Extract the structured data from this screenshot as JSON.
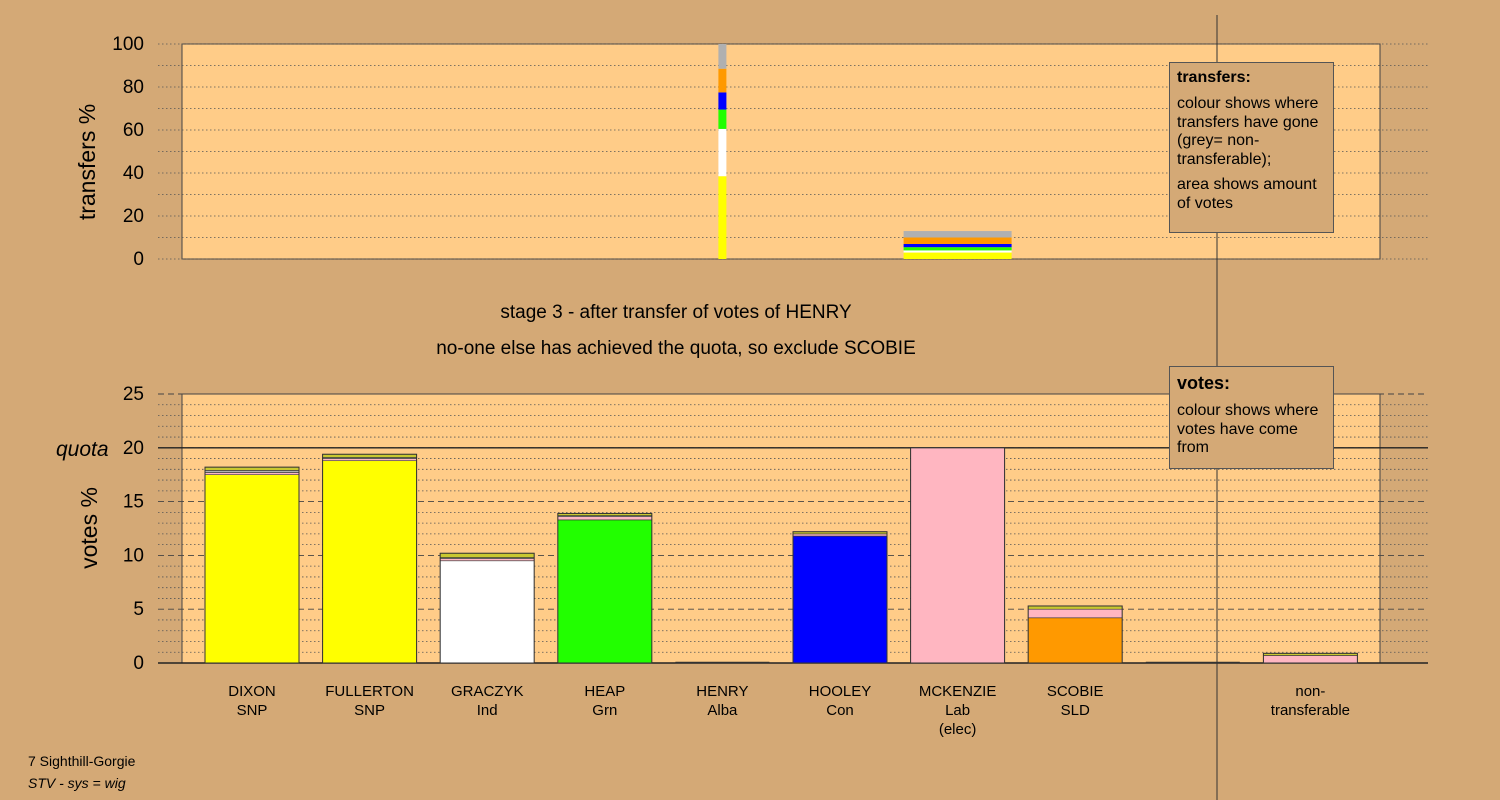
{
  "chart_data": [
    {
      "type": "bar",
      "id": "transfers",
      "ylabel": "transfers %",
      "ylim": [
        0,
        100
      ],
      "yticks": [
        0,
        20,
        40,
        60,
        80,
        100
      ],
      "grid": "dotted horizontal",
      "stacks": [
        {
          "column": "HENRY",
          "segments": [
            {
              "color": "#ffff00",
              "value": 38.5
            },
            {
              "color": "#ffffff",
              "value": 22
            },
            {
              "color": "#22ff00",
              "value": 9
            },
            {
              "color": "#0000ff",
              "value": 8
            },
            {
              "color": "#ff9900",
              "value": 11
            },
            {
              "color": "#b0b0b0",
              "value": 11.5
            }
          ]
        },
        {
          "column": "MCKENZIE",
          "segments": [
            {
              "color": "#ffff00",
              "value": 3
            },
            {
              "color": "#ffffff",
              "value": 1
            },
            {
              "color": "#22ff00",
              "value": 1.5
            },
            {
              "color": "#0000ff",
              "value": 1.5
            },
            {
              "color": "#ff9900",
              "value": 3
            },
            {
              "color": "#b0b0b0",
              "value": 3
            }
          ]
        }
      ]
    },
    {
      "type": "bar",
      "id": "votes",
      "ylabel": "votes %",
      "ylim": [
        0,
        25
      ],
      "yticks": [
        0,
        5,
        10,
        15,
        20,
        25
      ],
      "quota": 20,
      "quota_label": "quota",
      "grid": "dashed every 5, dotted every 1",
      "categories": [
        {
          "name": "DIXON",
          "party": "SNP",
          "note": ""
        },
        {
          "name": "FULLERTON",
          "party": "SNP",
          "note": ""
        },
        {
          "name": "GRACZYK",
          "party": "Ind",
          "note": ""
        },
        {
          "name": "HEAP",
          "party": "Grn",
          "note": ""
        },
        {
          "name": "HENRY",
          "party": "Alba",
          "note": ""
        },
        {
          "name": "HOOLEY",
          "party": "Con",
          "note": ""
        },
        {
          "name": "MCKENZIE",
          "party": "Lab",
          "note": "(elec)"
        },
        {
          "name": "SCOBIE",
          "party": "SLD",
          "note": ""
        },
        {
          "name": "",
          "party": "",
          "note": ""
        },
        {
          "name": "non-",
          "party": "transferable",
          "note": ""
        }
      ],
      "stacks": [
        [
          {
            "color": "#ffff00",
            "value": 17.5
          },
          {
            "color": "#ffb6c1",
            "value": 0.2
          },
          {
            "color": "#b0b0b0",
            "value": 0.2
          },
          {
            "color": "#c8c830",
            "value": 0.3
          }
        ],
        [
          {
            "color": "#ffff00",
            "value": 18.8
          },
          {
            "color": "#ffb6c1",
            "value": 0.2
          },
          {
            "color": "#b0b0b0",
            "value": 0.1
          },
          {
            "color": "#c8c830",
            "value": 0.3
          }
        ],
        [
          {
            "color": "#ffffff",
            "value": 9.5
          },
          {
            "color": "#ffb6c1",
            "value": 0.2
          },
          {
            "color": "#b0b0b0",
            "value": 0.1
          },
          {
            "color": "#c8c830",
            "value": 0.4
          }
        ],
        [
          {
            "color": "#22ff00",
            "value": 13.3
          },
          {
            "color": "#ffb6c1",
            "value": 0.3
          },
          {
            "color": "#b0b0b0",
            "value": 0.1
          },
          {
            "color": "#c8c830",
            "value": 0.2
          }
        ],
        [],
        [
          {
            "color": "#0000ff",
            "value": 11.8
          },
          {
            "color": "#ffb6c1",
            "value": 0.2
          },
          {
            "color": "#c8c830",
            "value": 0.2
          }
        ],
        [
          {
            "color": "#ffb6c1",
            "value": 20
          }
        ],
        [
          {
            "color": "#ff9900",
            "value": 4.2
          },
          {
            "color": "#ffb6c1",
            "value": 0.8
          },
          {
            "color": "#c8c830",
            "value": 0.3
          }
        ],
        [],
        [
          {
            "color": "#ffb6c1",
            "value": 0.7
          },
          {
            "color": "#c8c830",
            "value": 0.2
          }
        ]
      ]
    }
  ],
  "stage_title": "stage 3 - after transfer of votes of HENRY",
  "stage_subtitle": "no-one else has achieved the quota, so exclude SCOBIE",
  "legend_transfers": {
    "title": "transfers:",
    "line1": "colour shows where transfers have gone (grey= non-transferable);",
    "line2": "area shows amount of votes"
  },
  "legend_votes": {
    "title": "votes:",
    "line1": "colour shows where votes have come from"
  },
  "footer": {
    "ward": "7 Sighthill-Gorgie",
    "system": "STV - sys = wig"
  }
}
